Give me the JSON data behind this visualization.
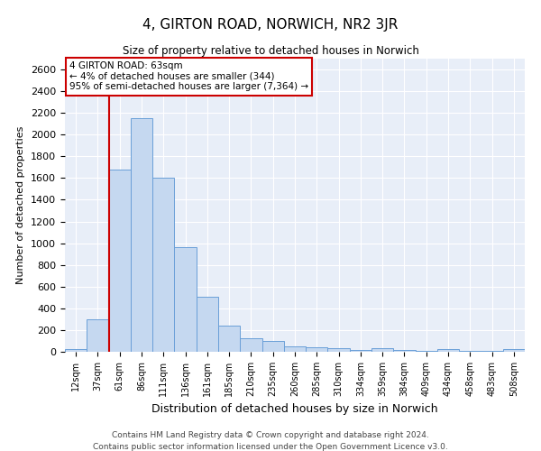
{
  "title": "4, GIRTON ROAD, NORWICH, NR2 3JR",
  "subtitle": "Size of property relative to detached houses in Norwich",
  "xlabel": "Distribution of detached houses by size in Norwich",
  "ylabel": "Number of detached properties",
  "categories": [
    "12sqm",
    "37sqm",
    "61sqm",
    "86sqm",
    "111sqm",
    "136sqm",
    "161sqm",
    "185sqm",
    "210sqm",
    "235sqm",
    "260sqm",
    "285sqm",
    "310sqm",
    "334sqm",
    "359sqm",
    "384sqm",
    "409sqm",
    "434sqm",
    "458sqm",
    "483sqm",
    "508sqm"
  ],
  "values": [
    25,
    300,
    1680,
    2150,
    1600,
    960,
    505,
    240,
    125,
    100,
    50,
    45,
    30,
    20,
    30,
    20,
    5,
    25,
    5,
    5,
    25
  ],
  "bar_color": "#c5d8f0",
  "bar_edge_color": "#6a9fd8",
  "background_color": "#e8eef8",
  "grid_color": "#ffffff",
  "annotation_box_text": "4 GIRTON ROAD: 63sqm\n← 4% of detached houses are smaller (344)\n95% of semi-detached houses are larger (7,364) →",
  "annotation_box_color": "#cc0000",
  "vline_color": "#cc0000",
  "vline_x": 1.5,
  "ylim": [
    0,
    2700
  ],
  "yticks": [
    0,
    200,
    400,
    600,
    800,
    1000,
    1200,
    1400,
    1600,
    1800,
    2000,
    2200,
    2400,
    2600
  ],
  "footer_line1": "Contains HM Land Registry data © Crown copyright and database right 2024.",
  "footer_line2": "Contains public sector information licensed under the Open Government Licence v3.0."
}
